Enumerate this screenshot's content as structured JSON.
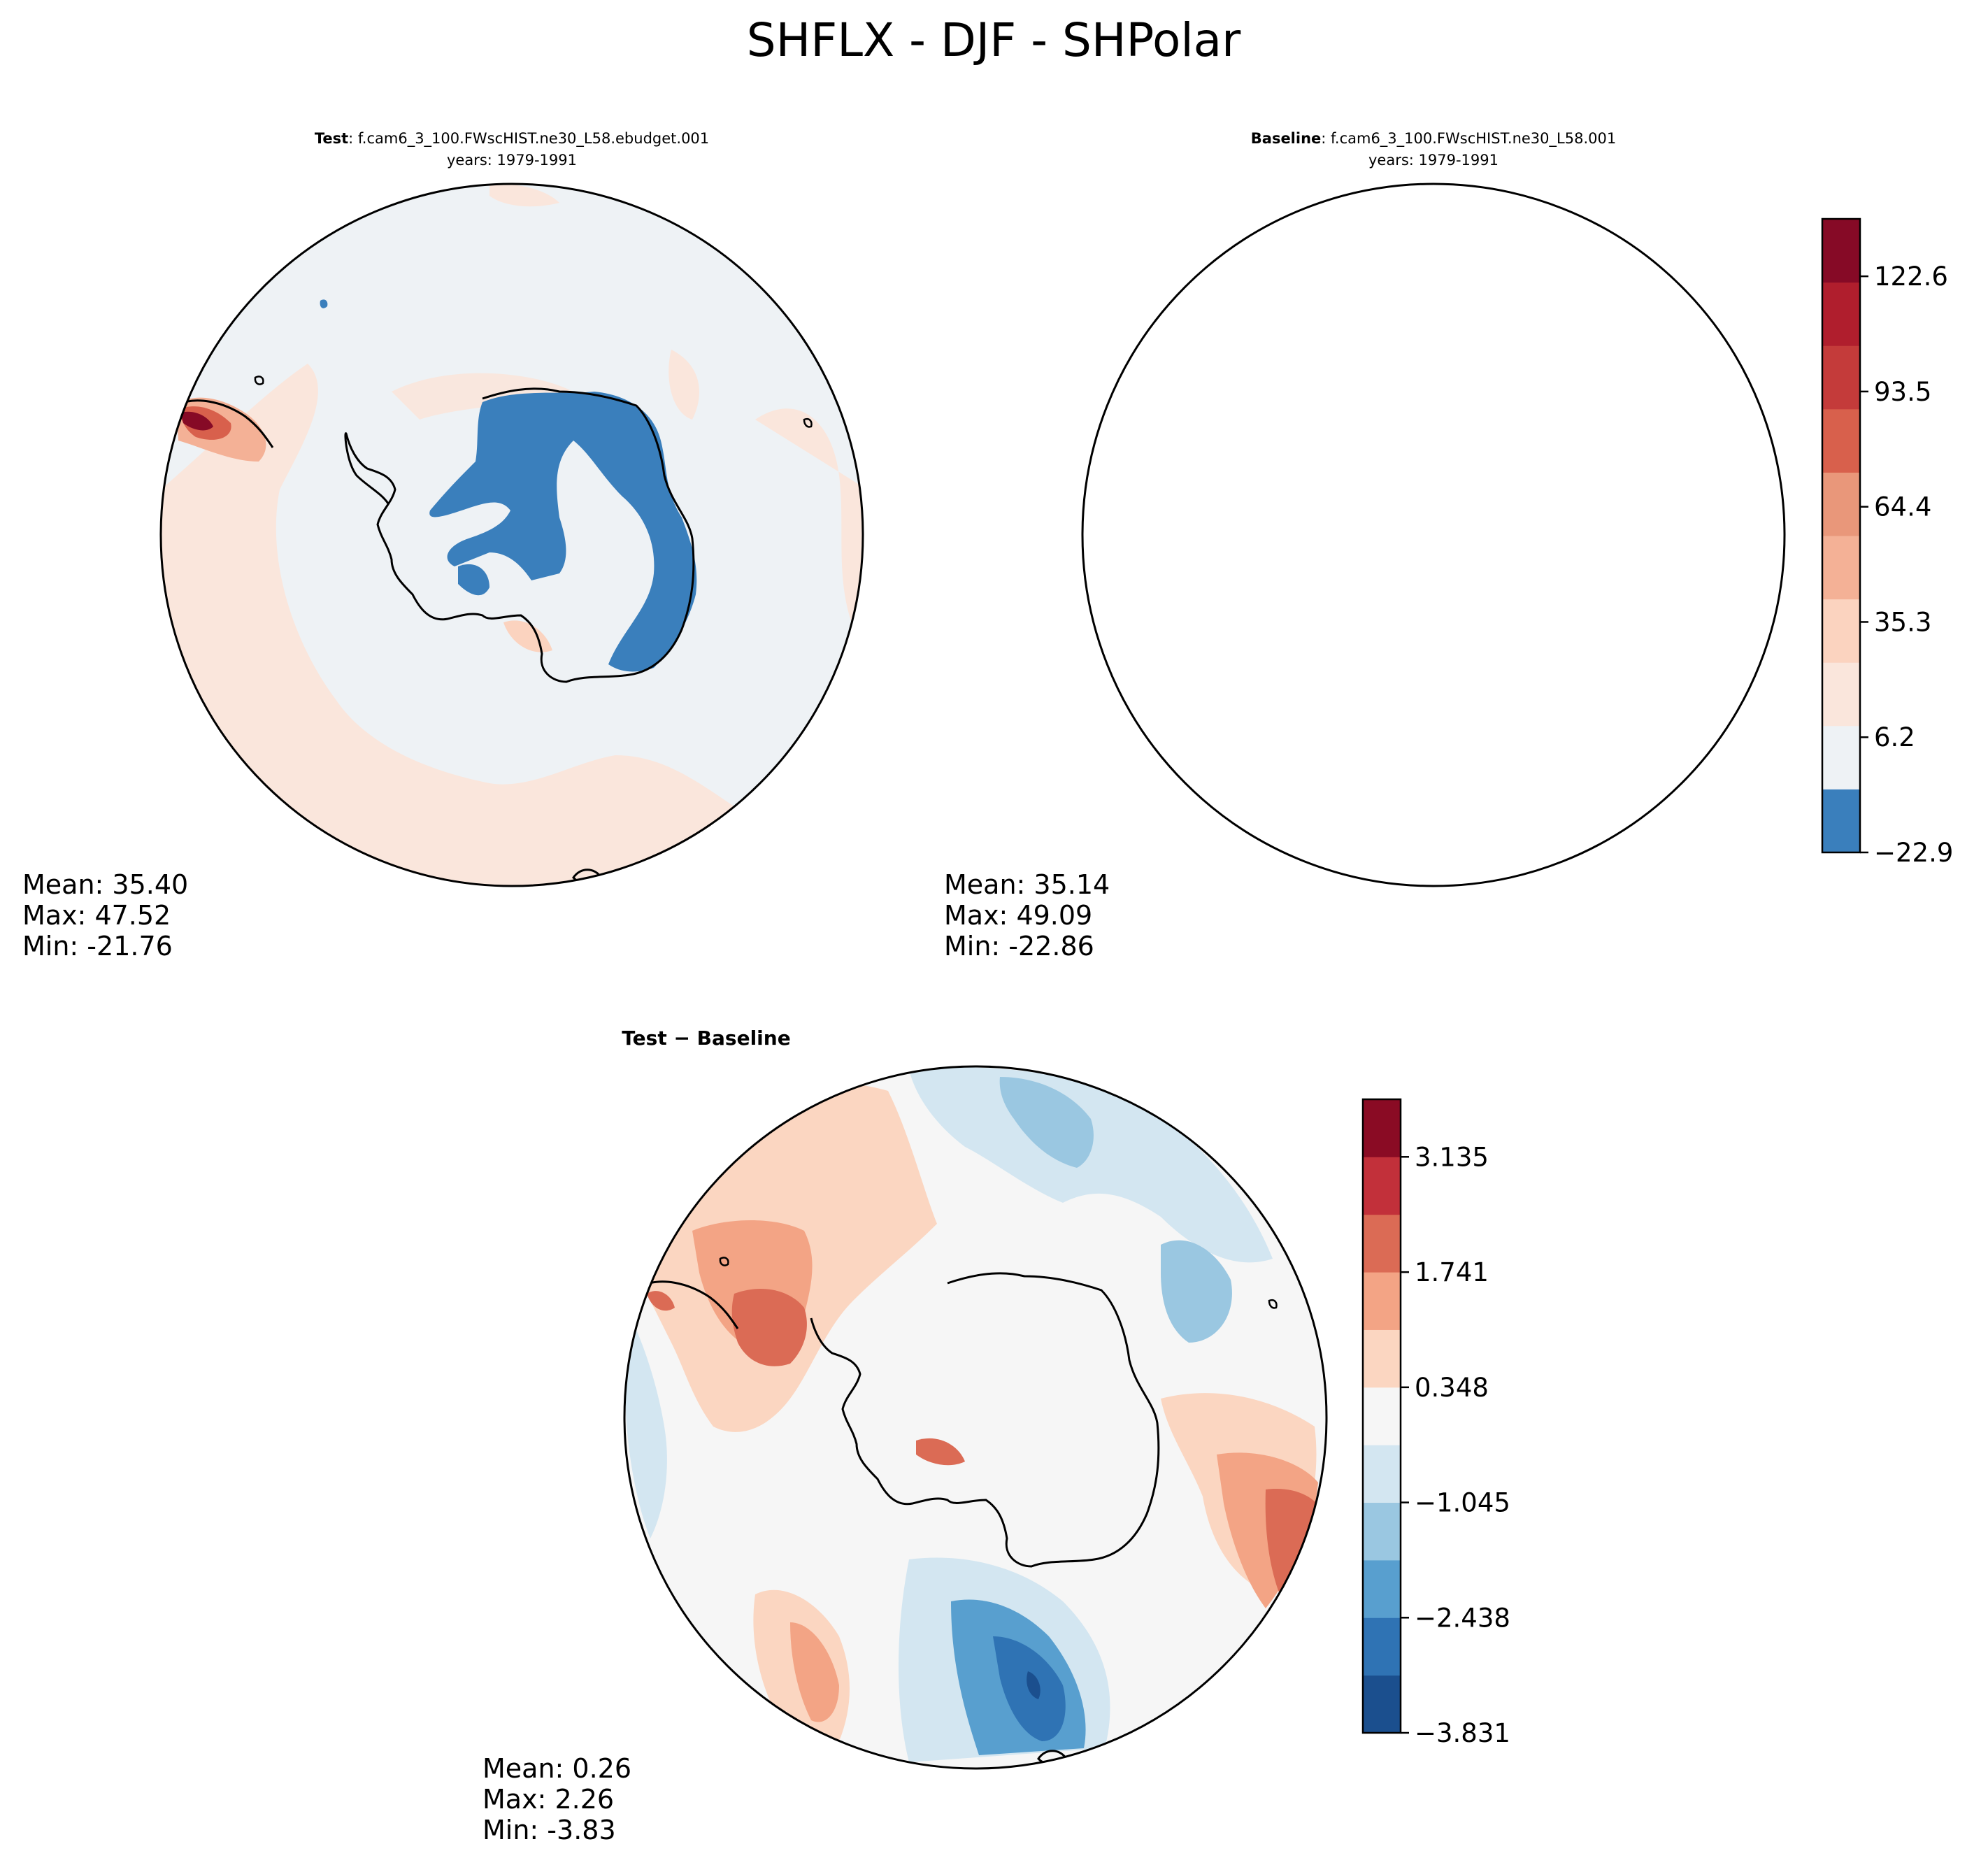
{
  "figure": {
    "title": "SHFLX - DJF - SHPolar"
  },
  "chart_data": [
    {
      "type": "heatmap",
      "projection": "south-polar-stereographic",
      "title_bold": "Test",
      "title_rest": ": f.cam6_3_100.FWscHIST.ne30_L58.ebudget.001",
      "subtitle": "years: 1979-1991",
      "stats": {
        "mean": "Mean: 35.40",
        "max": "Max: 47.52",
        "min": "Min: -21.76"
      },
      "colorbar": "shared-top"
    },
    {
      "type": "heatmap",
      "projection": "south-polar-stereographic",
      "title_bold": "Baseline",
      "title_rest": ": f.cam6_3_100.FWscHIST.ne30_L58.001",
      "subtitle": "years: 1979-1991",
      "stats": {
        "mean": "Mean: 35.14",
        "max": "Max: 49.09",
        "min": "Min: -22.86"
      },
      "colorbar": "shared-top"
    },
    {
      "type": "heatmap",
      "projection": "south-polar-stereographic",
      "title_bold": "Test − Baseline",
      "subtitle": "",
      "stats": {
        "mean": "Mean:  0.26",
        "max": "Max:  2.26",
        "min": "Min: -3.83"
      },
      "colorbar": "diff"
    }
  ],
  "colorbars": {
    "top": {
      "levels": [
        -22.9,
        6.2,
        35.3,
        64.4,
        93.5,
        122.6
      ],
      "tick_labels": [
        "−22.9",
        "6.2",
        "35.3",
        "64.4",
        "93.5",
        "122.6"
      ],
      "range": [
        -22.9,
        137.1
      ],
      "colors": [
        "#3a7fbc",
        "#eef2f5",
        "#fae6dc",
        "#fbd3bf",
        "#f4b196",
        "#e9977a",
        "#d8604c",
        "#c43b3a",
        "#b01e2d",
        "#860a26"
      ]
    },
    "diff": {
      "levels": [
        -3.831,
        -2.438,
        -1.045,
        0.348,
        1.741,
        3.135
      ],
      "tick_labels": [
        "−3.831",
        "−2.438",
        "−1.045",
        "0.348",
        "1.741",
        "3.135"
      ],
      "range": [
        -3.831,
        3.831
      ],
      "colors": [
        "#1b4f8e",
        "#2f73b4",
        "#589fcf",
        "#9ac7e1",
        "#d3e6f1",
        "#f6f6f6",
        "#fbd6c1",
        "#f3a485",
        "#db6b55",
        "#c2303a",
        "#8a0b24"
      ]
    }
  },
  "colors": {
    "neg_strong": "#3a7fbc",
    "ocean_field": "#eef2f5",
    "pos_weak": "#fae6dc",
    "diff_neutral": "#f6f6f6",
    "coast": "#000000"
  }
}
